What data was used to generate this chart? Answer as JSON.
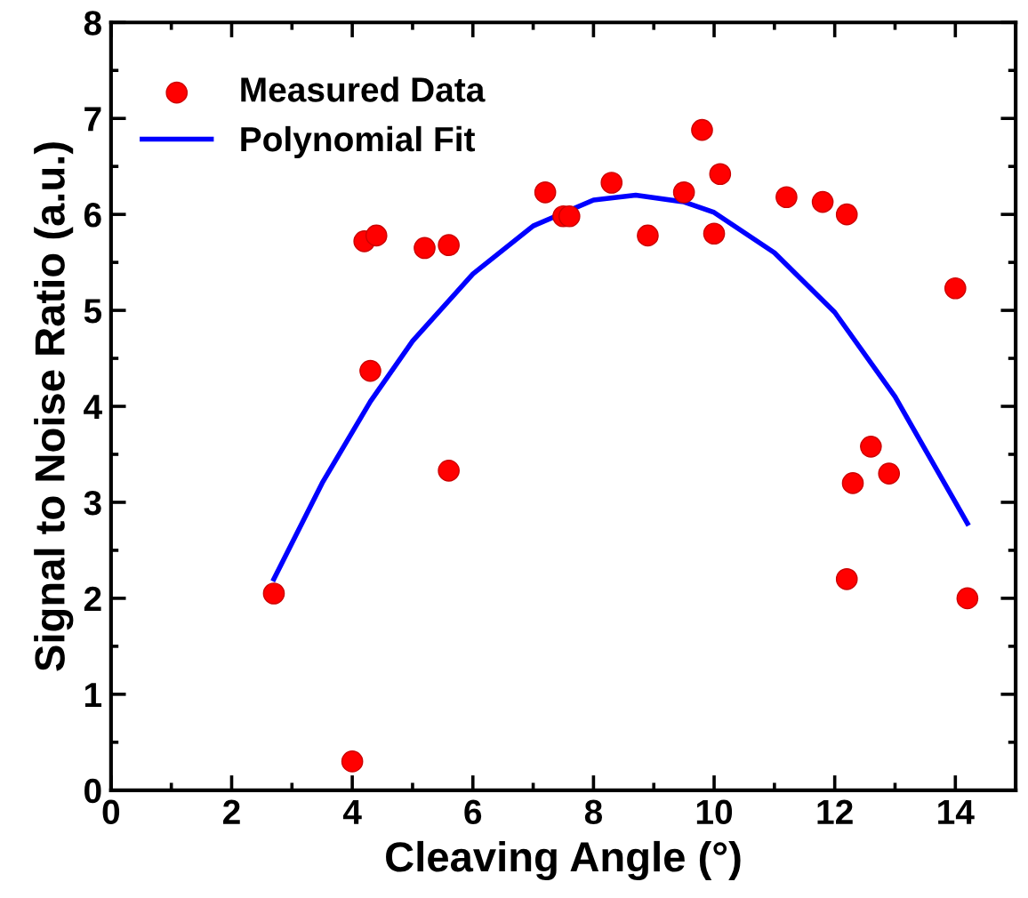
{
  "chart_data": {
    "type": "scatter",
    "xlabel": "Cleaving Angle (°)",
    "ylabel": "Signal to Noise Ratio (a.u.)",
    "xlim": [
      0,
      15
    ],
    "ylim": [
      0,
      8
    ],
    "xticks": [
      0,
      2,
      4,
      6,
      8,
      10,
      12,
      14
    ],
    "yticks": [
      0,
      1,
      2,
      3,
      4,
      5,
      6,
      7,
      8
    ],
    "grid": false,
    "legend": "top left",
    "series": [
      {
        "name": "Measured Data",
        "color": "#ff0000",
        "marker": "circle",
        "x": [
          2.7,
          4.0,
          4.2,
          4.4,
          4.3,
          5.2,
          5.6,
          5.6,
          7.2,
          7.5,
          7.6,
          8.3,
          8.9,
          9.5,
          9.8,
          10.0,
          10.1,
          11.2,
          11.8,
          12.2,
          12.2,
          12.3,
          12.6,
          12.9,
          14.0,
          14.2
        ],
        "values": [
          2.05,
          0.3,
          5.72,
          5.78,
          4.37,
          5.65,
          5.68,
          3.33,
          6.23,
          5.98,
          5.98,
          6.33,
          5.78,
          6.23,
          6.88,
          5.8,
          6.42,
          6.18,
          6.13,
          6.0,
          2.2,
          3.2,
          3.58,
          3.3,
          5.23,
          2.0
        ]
      },
      {
        "name": "Polynomial Fit",
        "type": "line",
        "color": "#0000ff",
        "marker": "none",
        "line_style": "solid",
        "x": [
          2.7,
          3.5,
          4.3,
          5,
          6,
          7,
          8,
          8.7,
          9.5,
          10,
          11,
          12,
          13,
          14,
          14.2
        ],
        "values": [
          2.2,
          3.2,
          4.05,
          4.68,
          5.38,
          5.88,
          6.15,
          6.2,
          6.13,
          6.02,
          5.6,
          4.98,
          4.1,
          3.0,
          2.78
        ]
      }
    ]
  }
}
